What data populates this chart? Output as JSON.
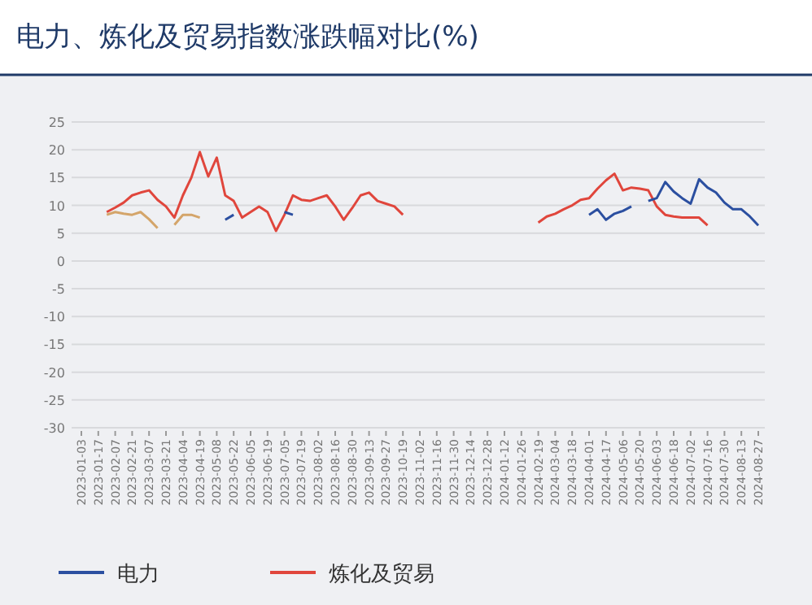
{
  "chart_data": {
    "type": "line",
    "title": "电力、炼化及贸易指数涨跌幅对比(%)",
    "categories": [
      "2023-01-03",
      null,
      "2023-01-17",
      null,
      "2023-02-07",
      null,
      "2023-02-21",
      null,
      "2023-03-07",
      null,
      "2023-03-21",
      null,
      "2023-04-04",
      null,
      "2023-04-19",
      null,
      "2023-05-08",
      null,
      "2023-05-22",
      null,
      "2023-06-05",
      null,
      "2023-06-19",
      null,
      "2023-07-05",
      null,
      "2023-07-19",
      null,
      "2023-08-02",
      null,
      "2023-08-16",
      null,
      "2023-08-30",
      null,
      "2023-09-13",
      null,
      "2023-09-27",
      null,
      "2023-10-19",
      null,
      "2023-11-02",
      null,
      "2023-11-16",
      null,
      "2023-11-30",
      null,
      "2023-12-14",
      null,
      "2023-12-28",
      null,
      "2024-01-12",
      null,
      "2024-01-26",
      null,
      "2024-02-19",
      null,
      "2024-03-04",
      null,
      "2024-03-18",
      null,
      "2024-04-01",
      null,
      "2024-04-17",
      null,
      "2024-05-06",
      null,
      "2024-05-20",
      null,
      "2024-06-03",
      null,
      "2024-06-18",
      null,
      "2024-07-02",
      null,
      "2024-07-16",
      null,
      "2024-07-30",
      null,
      "2024-08-13",
      null,
      "2024-08-27"
    ],
    "series": [
      {
        "name": "电力",
        "color": "#2b4fa0",
        "values": [
          null,
          null,
          null,
          null,
          null,
          null,
          null,
          null,
          null,
          null,
          null,
          null,
          null,
          null,
          null,
          null,
          null,
          7.4,
          8.3,
          null,
          null,
          null,
          null,
          null,
          8.8,
          8.3,
          null,
          null,
          null,
          null,
          null,
          null,
          null,
          null,
          null,
          null,
          null,
          null,
          null,
          null,
          null,
          null,
          null,
          null,
          null,
          null,
          null,
          null,
          null,
          null,
          null,
          null,
          null,
          null,
          null,
          null,
          null,
          null,
          null,
          null,
          8.3,
          9.3,
          7.4,
          8.5,
          9,
          9.8,
          null,
          10.8,
          11.3,
          14.2,
          12.5,
          11.3,
          10.3,
          14.7,
          13.2,
          12.3,
          10.5,
          9.3,
          9.3,
          8,
          6.4
        ]
      },
      {
        "name": "炼化及贸易",
        "color": "#e0463c",
        "values": [
          null,
          null,
          null,
          8.8,
          9.6,
          10.5,
          11.8,
          12.3,
          12.7,
          11,
          9.8,
          7.8,
          11.8,
          15,
          19.6,
          15.2,
          18.6,
          11.8,
          10.8,
          7.8,
          8.8,
          9.8,
          8.8,
          5.4,
          8.3,
          11.8,
          11,
          10.8,
          11.3,
          11.8,
          9.8,
          7.4,
          9.5,
          11.8,
          12.3,
          10.8,
          10.3,
          9.8,
          8.3,
          null,
          null,
          null,
          null,
          null,
          null,
          null,
          null,
          null,
          null,
          null,
          null,
          null,
          null,
          null,
          6.9,
          8,
          8.5,
          9.3,
          10,
          11,
          11.3,
          13,
          14.5,
          15.7,
          12.7,
          13.2,
          13,
          12.7,
          9.8,
          8.3,
          8,
          7.8,
          7.8,
          7.8,
          6.4,
          null,
          null,
          null,
          null,
          null,
          null
        ]
      },
      {
        "color": "#d4a56a",
        "values": [
          null,
          null,
          null,
          8.3,
          8.8,
          8.5,
          8.3,
          8.8,
          7.5,
          5.9,
          null,
          6.5,
          8.3,
          8.3,
          7.8,
          null,
          null,
          null,
          null,
          null,
          null,
          null,
          null,
          null,
          null,
          null,
          null,
          null,
          null,
          null,
          null,
          null,
          null,
          null,
          null,
          null,
          null,
          null,
          null,
          null,
          null,
          null,
          null,
          null,
          null,
          null,
          null,
          null,
          null,
          null,
          null,
          null,
          null,
          null,
          null,
          null,
          null,
          null,
          null,
          null,
          null,
          null,
          null,
          null,
          null,
          null,
          null,
          null,
          null,
          null,
          null,
          null,
          null,
          null,
          null,
          null,
          null,
          null,
          null,
          null,
          null
        ]
      }
    ],
    "ylim": [
      -30,
      25
    ],
    "yticks": [
      25,
      20,
      15,
      10,
      5,
      0,
      -5,
      -10,
      -15,
      -20,
      -25,
      -30
    ],
    "grid": "y",
    "legend": "bottom"
  }
}
